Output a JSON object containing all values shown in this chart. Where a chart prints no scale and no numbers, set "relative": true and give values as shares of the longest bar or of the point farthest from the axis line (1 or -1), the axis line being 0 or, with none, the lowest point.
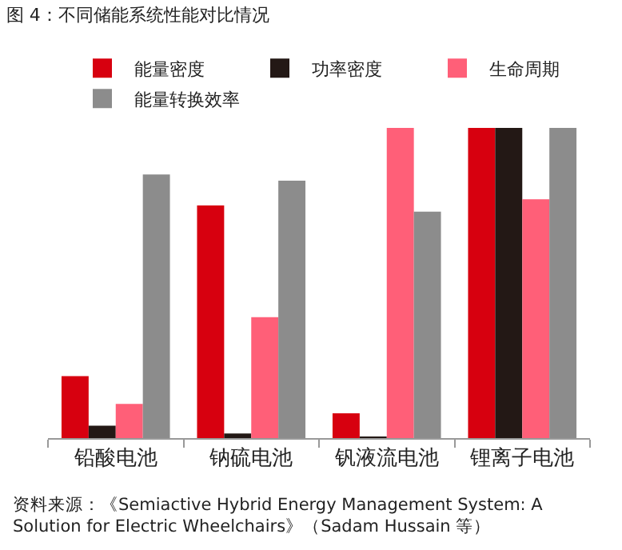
{
  "chart_data": {
    "type": "bar",
    "title": "图 4：不同储能系统性能对比情况",
    "relative": true,
    "categories": [
      "铅酸电池",
      "钠硫电池",
      "钒液流电池",
      "锂离子电池"
    ],
    "series": [
      {
        "name": "能量密度",
        "color": "#d7000f",
        "values": [
          0.2,
          0.75,
          0.08,
          1
        ]
      },
      {
        "name": "功率密度",
        "color": "#231815",
        "values": [
          0.04,
          0.015,
          0.003,
          1
        ]
      },
      {
        "name": "生命周期",
        "color": "#ff5f78",
        "values": [
          0.11,
          0.39,
          1,
          0.77
        ]
      },
      {
        "name": "能量转换效率",
        "color": "#8c8c8c",
        "values": [
          0.85,
          0.83,
          0.73,
          1
        ]
      }
    ],
    "legend": "top",
    "annotations": [
      "资料来源：《Semiactive Hybrid Energy Management System: A Solution for Electric Wheelchairs》（Sadam Hussain 等）"
    ]
  }
}
